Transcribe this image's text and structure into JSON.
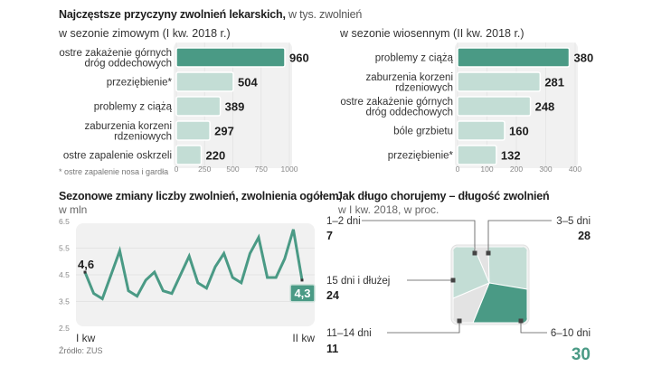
{
  "header": {
    "title_bold": "Najczęstsze przyczyny zwolnień lekarskich,",
    "title_rest": " w tys. zwolnień"
  },
  "colors": {
    "accent": "#4a9a85",
    "light": "#c3ddd5",
    "grey": "#e3e3e3",
    "panel": "#f1f1f1"
  },
  "chart_data": [
    {
      "type": "bar",
      "orientation": "horizontal",
      "title": "w sezonie zimowym (I kw. 2018 r.)",
      "categories": [
        "ostre zakażenie górnych\ndróg oddechowych",
        "przeziębienie*",
        "problemy z ciążą",
        "zaburzenia korzeni\nrdzeniowych",
        "ostre zapalenie oskrzeli"
      ],
      "category_lines": [
        [
          "ostre zakażenie górnych",
          "dróg oddechowych"
        ],
        [
          "przeziębienie*"
        ],
        [
          "problemy z ciążą"
        ],
        [
          "zaburzenia korzeni",
          "rdzeniowych"
        ],
        [
          "ostre zapalenie oskrzeli"
        ]
      ],
      "values": [
        960,
        504,
        389,
        297,
        220
      ],
      "value_labels": [
        "960",
        "504",
        "389",
        "297",
        "220"
      ],
      "highlight_index": 0,
      "xlim": [
        0,
        1000
      ],
      "xticks": [
        0,
        250,
        500,
        750,
        1000
      ],
      "xtick_labels": [
        "0",
        "250",
        "500",
        "750",
        "1000"
      ],
      "footnote": "* ostre zapalenie nosa i gardła",
      "grid": true
    },
    {
      "type": "bar",
      "orientation": "horizontal",
      "title": "w sezonie wiosennym (II kw. 2018 r.)",
      "categories": [
        "problemy z ciążą",
        "zaburzenia korzeni\nrdzeniowych",
        "ostre zakażenie górnych\ndróg oddechowych",
        "bóle grzbietu",
        "przeziębienie*"
      ],
      "category_lines": [
        [
          "problemy z ciążą"
        ],
        [
          "zaburzenia korzeni",
          "rdzeniowych"
        ],
        [
          "ostre zakażenie górnych",
          "dróg oddechowych"
        ],
        [
          "bóle grzbietu"
        ],
        [
          "przeziębienie*"
        ]
      ],
      "values": [
        380,
        281,
        248,
        160,
        132
      ],
      "value_labels": [
        "380",
        "281",
        "248",
        "160",
        "132"
      ],
      "highlight_index": 0,
      "xlim": [
        0,
        400
      ],
      "xticks": [
        0,
        100,
        200,
        300,
        400
      ],
      "xtick_labels": [
        "0",
        "100",
        "200",
        "300",
        "400"
      ],
      "grid": true
    },
    {
      "type": "line",
      "title": "Sezonowe zmiany liczby zwolnień, zwolnienia ogółem,",
      "ylabel": "w mln",
      "ylim": [
        2.5,
        6.5
      ],
      "yticks": [
        2.5,
        3.5,
        4.5,
        5.5,
        6.5
      ],
      "ytick_labels": [
        "2.5",
        "3.5",
        "4.5",
        "5.5",
        "6.5"
      ],
      "x_labels": [
        "I kw",
        "II kw"
      ],
      "series": [
        {
          "name": "zwolnienia ogółem",
          "values": [
            4.6,
            3.8,
            3.6,
            4.5,
            5.4,
            3.9,
            3.7,
            4.3,
            4.6,
            3.9,
            3.8,
            4.5,
            5.2,
            4.2,
            4.0,
            4.8,
            5.3,
            4.4,
            4.2,
            5.3,
            5.9,
            4.4,
            4.4,
            5.1,
            6.2,
            4.3
          ]
        }
      ],
      "annotations": [
        {
          "label": "4,6",
          "index": 0
        },
        {
          "label": "4,3",
          "index": 25
        }
      ],
      "source": "Źródło: ZUS",
      "grid": true
    },
    {
      "type": "pie",
      "title": "Jak długo chorujemy – długość zwolnień",
      "subtitle": "w I kw. 2018, w proc.",
      "slices": [
        {
          "label": "1–2 dni",
          "value": 7,
          "value_label": "7",
          "color": "#e3e3e3"
        },
        {
          "label": "3–5 dni",
          "value": 28,
          "value_label": "28",
          "color": "#c3ddd5"
        },
        {
          "label": "6–10 dni",
          "value": 30,
          "value_label": "30",
          "color": "#4a9a85"
        },
        {
          "label": "11–14 dni",
          "value": 11,
          "value_label": "11",
          "color": "#e3e3e3"
        },
        {
          "label": "15 dni i dłużej",
          "value": 24,
          "value_label": "24",
          "color": "#c3ddd5"
        }
      ]
    }
  ]
}
